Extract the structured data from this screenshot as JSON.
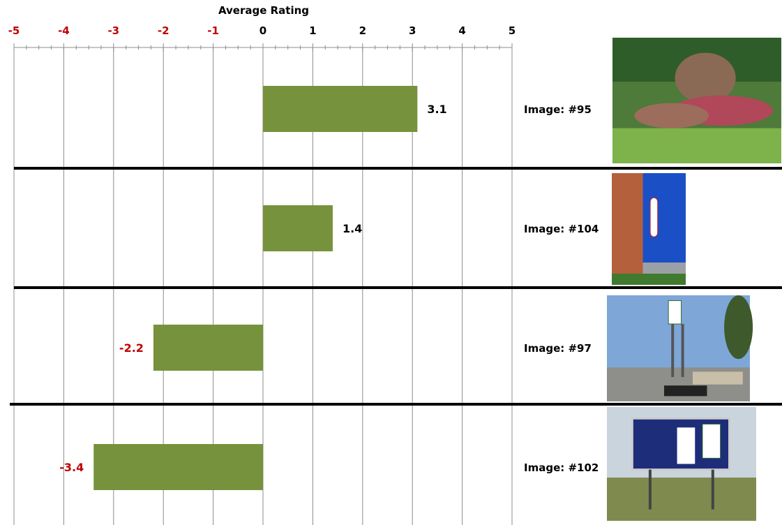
{
  "chart_data": {
    "type": "bar",
    "orientation": "horizontal",
    "title": "Average Rating",
    "xlim": [
      -5,
      5
    ],
    "ticks": [
      "-5",
      "-4",
      "-3",
      "-2",
      "-1",
      "0",
      "1",
      "2",
      "3",
      "4",
      "5"
    ],
    "grid": true,
    "categories": [
      "Image: #95",
      "Image: #104",
      "Image: #97",
      "Image: #102"
    ],
    "values": [
      3.1,
      1.4,
      -2.2,
      -3.4
    ],
    "value_labels": [
      "3.1",
      "1.4",
      "-2.2",
      "-3.4"
    ],
    "colors": {
      "bar": "#76923c",
      "negative_text": "#c00000",
      "positive_text": "#000000",
      "grid": "#8c8c8c"
    }
  },
  "images": [
    {
      "icon": "landscape-photo-icon"
    },
    {
      "icon": "bank-building-photo-icon"
    },
    {
      "icon": "seven-eleven-sign-photo-icon"
    },
    {
      "icon": "billboard-photo-icon"
    }
  ]
}
